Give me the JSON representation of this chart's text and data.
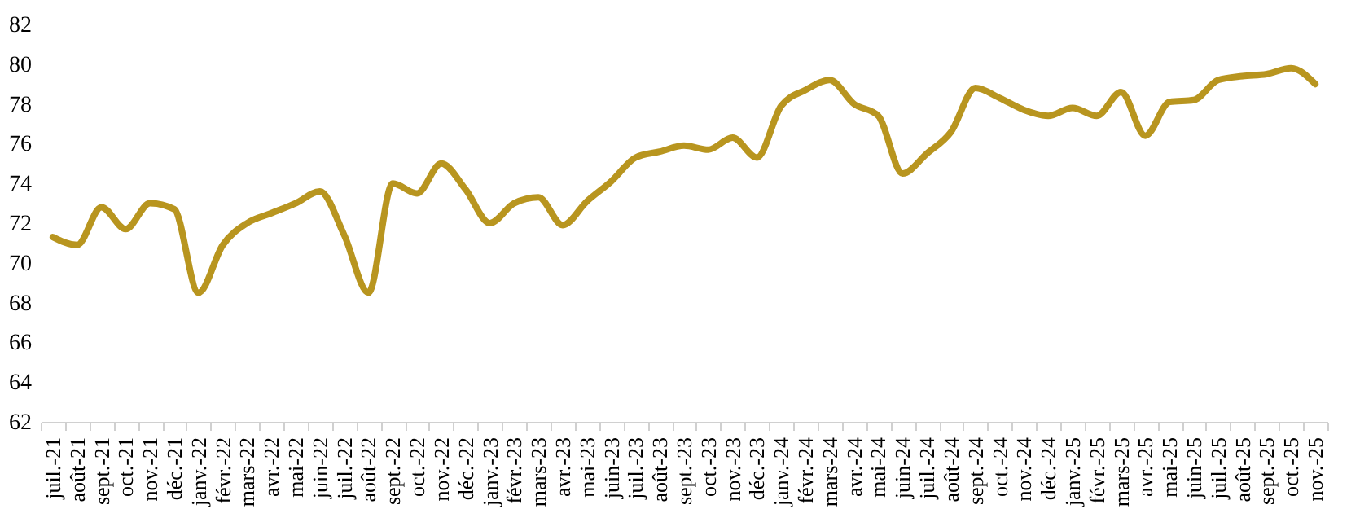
{
  "chart_data": {
    "type": "line",
    "categories": [
      "juil.-21",
      "août-21",
      "sept.-21",
      "oct.-21",
      "nov.-21",
      "déc.-21",
      "janv.-22",
      "févr.-22",
      "mars-22",
      "avr.-22",
      "mai-22",
      "juin-22",
      "juil.-22",
      "août-22",
      "sept.-22",
      "oct.-22",
      "nov.-22",
      "déc.-22",
      "janv.-23",
      "févr.-23",
      "mars-23",
      "avr.-23",
      "mai-23",
      "juin-23",
      "juil.-23",
      "août-23",
      "sept.-23",
      "oct.-23",
      "nov.-23",
      "déc.-23",
      "janv.-24",
      "févr.-24",
      "mars-24",
      "avr.-24",
      "mai-24",
      "juin-24",
      "juil.-24",
      "août-24",
      "sept.-24",
      "oct.-24",
      "nov.-24",
      "déc.-24",
      "janv.-25",
      "févr.-25",
      "mars-25",
      "avr.-25",
      "mai-25",
      "juin-25",
      "juil.-25",
      "août-25",
      "sept.-25",
      "oct.-25",
      "nov.-25"
    ],
    "series": [
      {
        "color": "#b8951f",
        "values": [
          71.3,
          70.9,
          72.8,
          71.7,
          73.0,
          72.7,
          68.5,
          70.9,
          72.0,
          72.5,
          73.0,
          73.6,
          71.4,
          68.5,
          74.0,
          73.5,
          75.0,
          73.7,
          72.0,
          73.0,
          73.3,
          71.9,
          73.1,
          74.1,
          75.3,
          75.6,
          75.9,
          75.7,
          76.3,
          75.3,
          77.9,
          78.7,
          79.2,
          78.0,
          77.4,
          74.5,
          75.5,
          76.6,
          78.8,
          78.3,
          77.7,
          77.4,
          77.8,
          77.4,
          78.6,
          76.4,
          78.1,
          78.2,
          79.2,
          79.4,
          79.5,
          79.8,
          79.0
        ]
      }
    ],
    "ylim": [
      62,
      82
    ],
    "yticks": [
      62,
      64,
      66,
      68,
      70,
      72,
      74,
      76,
      78,
      80,
      82
    ],
    "grid": false,
    "marker": "none",
    "line_style": "solid"
  }
}
